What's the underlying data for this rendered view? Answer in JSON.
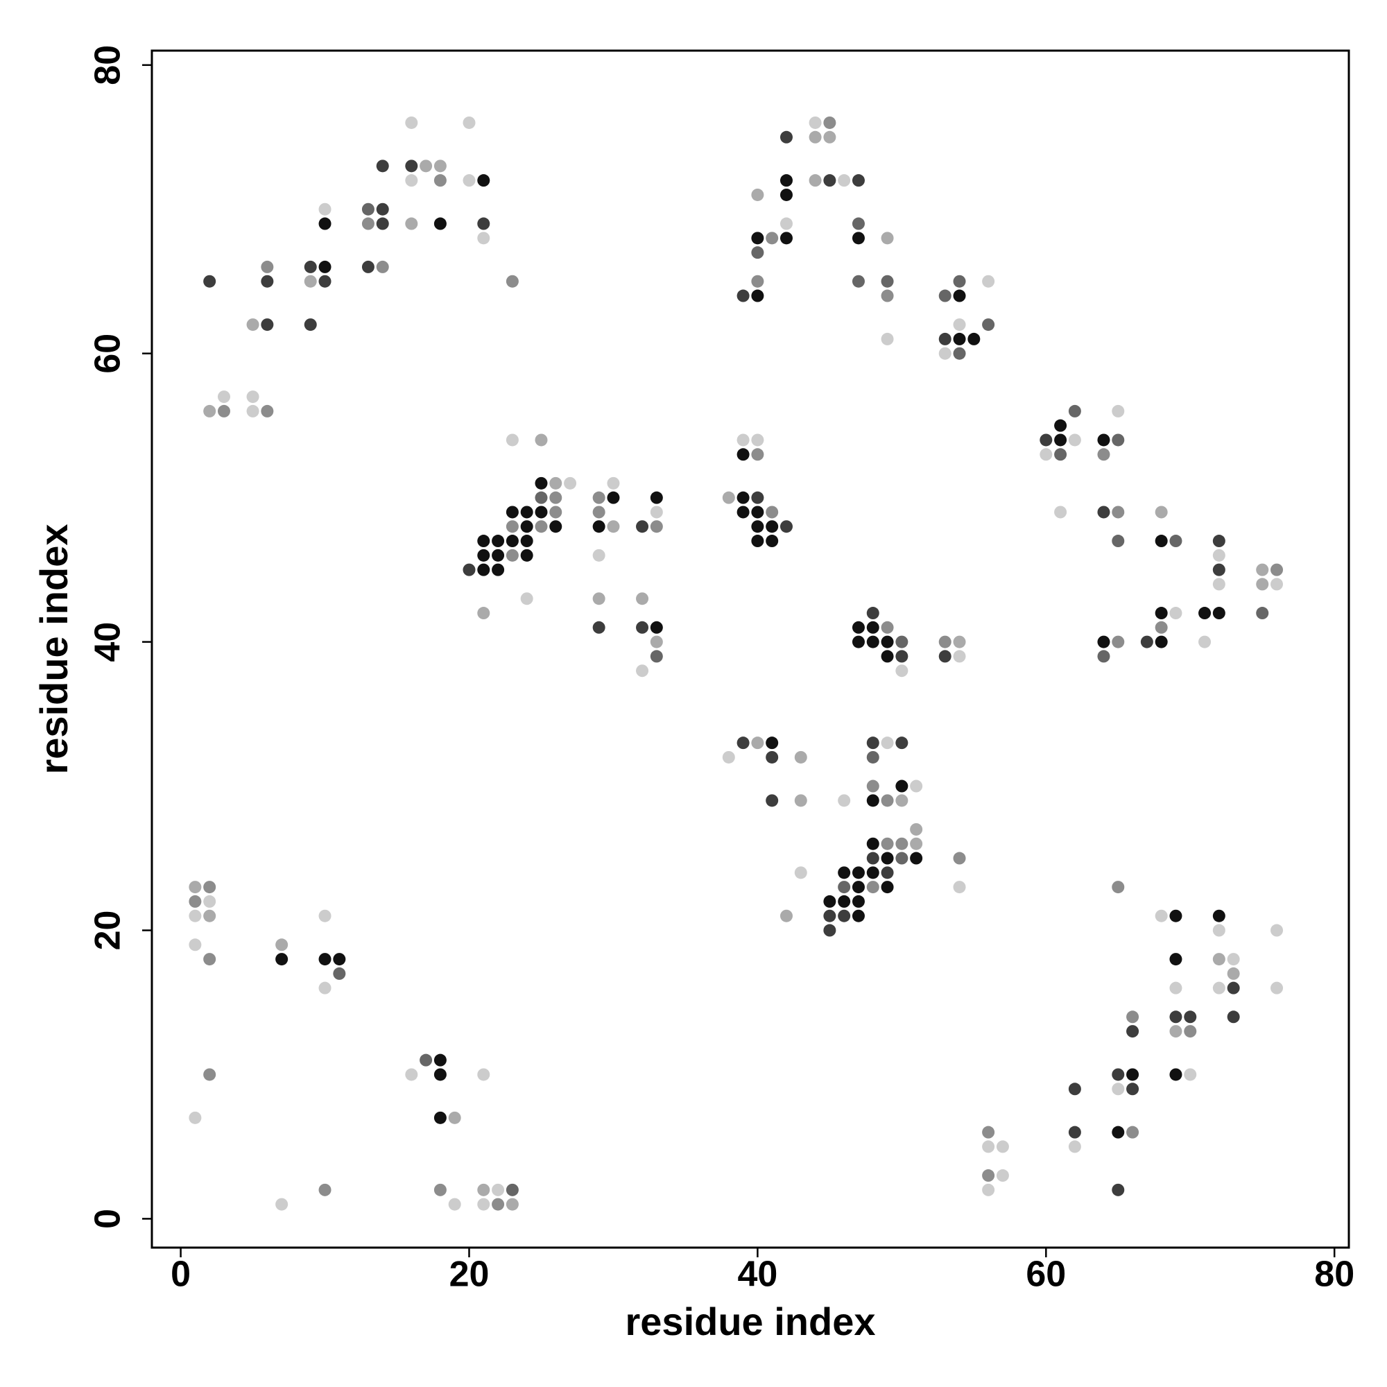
{
  "chart_data": {
    "type": "scatter",
    "xlabel": "residue index",
    "ylabel": "residue index",
    "xlim": [
      -2,
      81
    ],
    "ylim": [
      -2,
      81
    ],
    "xticks": [
      0,
      20,
      40,
      60,
      80
    ],
    "yticks": [
      0,
      20,
      40,
      60,
      80
    ],
    "x": [
      2,
      5,
      6,
      6,
      6,
      9,
      9,
      9,
      10,
      10,
      10,
      10,
      13,
      14,
      13,
      13,
      14,
      14,
      14,
      16,
      16,
      17,
      18,
      18,
      16,
      18,
      16,
      20,
      20,
      21,
      21,
      21,
      23,
      2,
      3,
      3,
      5,
      5,
      6,
      1,
      2,
      1,
      2,
      1,
      2,
      1,
      2,
      7,
      7,
      10,
      10,
      11,
      11,
      10,
      2,
      1,
      7,
      10,
      16,
      17,
      18,
      18,
      18,
      19,
      18,
      19,
      21,
      21,
      22,
      23,
      21,
      22,
      23,
      23,
      25,
      25,
      26,
      27,
      25,
      26,
      24,
      23,
      25,
      26,
      23,
      24,
      25,
      26,
      22,
      21,
      23,
      24,
      21,
      22,
      23,
      24,
      20,
      21,
      22,
      21,
      24,
      29,
      30,
      30,
      29,
      29,
      30,
      29,
      29,
      29,
      32,
      33,
      33,
      33,
      32,
      32,
      33,
      33,
      33,
      32,
      38,
      39,
      40,
      39,
      40,
      41,
      40,
      41,
      42,
      40,
      41,
      39,
      40,
      39,
      40,
      44,
      45,
      44,
      45,
      42,
      44,
      45,
      46,
      47,
      42,
      42,
      40,
      42,
      40,
      41,
      42,
      40,
      47,
      47,
      49,
      39,
      40,
      40,
      47,
      49,
      49,
      49,
      53,
      54,
      54,
      56,
      54,
      56,
      53,
      54,
      55,
      53,
      54,
      48,
      47,
      48,
      49,
      47,
      48,
      49,
      50,
      49,
      50,
      50,
      53,
      54,
      53,
      54,
      38,
      39,
      40,
      41,
      41,
      43,
      41,
      43,
      46,
      48,
      49,
      50,
      48,
      48,
      50,
      51,
      48,
      49,
      50,
      51,
      48,
      49,
      50,
      51,
      48,
      49,
      50,
      51,
      46,
      47,
      48,
      49,
      46,
      47,
      48,
      49,
      45,
      46,
      47,
      45,
      46,
      47,
      45,
      43,
      42,
      54,
      54,
      56,
      56,
      57,
      56,
      57,
      56,
      62,
      61,
      60,
      61,
      62,
      60,
      61,
      61,
      64,
      65,
      64,
      65,
      64,
      65,
      65,
      68,
      68,
      69,
      72,
      72,
      72,
      72,
      75,
      76,
      75,
      76,
      75,
      68,
      69,
      71,
      72,
      71,
      68,
      67,
      68,
      64,
      65,
      64,
      65,
      68,
      69,
      72,
      72,
      76,
      69,
      72,
      73,
      73,
      69,
      72,
      73,
      76,
      66,
      69,
      70,
      73,
      66,
      69,
      70,
      69,
      70,
      65,
      66,
      65,
      66,
      62,
      62,
      62,
      65,
      66,
      65
    ],
    "y": [
      65,
      62,
      62,
      65,
      66,
      62,
      65,
      66,
      66,
      65,
      69,
      70,
      66,
      66,
      69,
      70,
      69,
      70,
      73,
      73,
      72,
      73,
      73,
      72,
      69,
      69,
      76,
      76,
      72,
      72,
      69,
      68,
      65,
      56,
      56,
      57,
      57,
      56,
      56,
      23,
      23,
      22,
      22,
      21,
      21,
      19,
      18,
      19,
      18,
      21,
      18,
      18,
      17,
      16,
      10,
      7,
      1,
      2,
      10,
      11,
      11,
      10,
      7,
      7,
      2,
      1,
      10,
      2,
      2,
      2,
      1,
      1,
      1,
      54,
      54,
      51,
      51,
      51,
      50,
      50,
      49,
      49,
      49,
      49,
      48,
      48,
      48,
      48,
      47,
      47,
      47,
      47,
      46,
      46,
      46,
      46,
      45,
      45,
      45,
      42,
      43,
      50,
      50,
      51,
      49,
      48,
      48,
      46,
      43,
      41,
      48,
      48,
      50,
      49,
      43,
      41,
      41,
      40,
      39,
      38,
      50,
      50,
      50,
      49,
      49,
      49,
      48,
      48,
      48,
      47,
      47,
      54,
      54,
      53,
      53,
      76,
      76,
      75,
      75,
      75,
      72,
      72,
      72,
      72,
      72,
      71,
      71,
      69,
      68,
      68,
      68,
      67,
      69,
      68,
      68,
      64,
      64,
      65,
      65,
      65,
      64,
      61,
      64,
      64,
      65,
      65,
      62,
      62,
      61,
      61,
      61,
      60,
      60,
      42,
      41,
      41,
      41,
      40,
      40,
      40,
      40,
      39,
      39,
      38,
      40,
      40,
      39,
      39,
      32,
      33,
      33,
      33,
      32,
      32,
      29,
      29,
      29,
      33,
      33,
      33,
      32,
      30,
      30,
      30,
      29,
      29,
      29,
      27,
      26,
      26,
      26,
      26,
      25,
      25,
      25,
      25,
      24,
      24,
      24,
      24,
      23,
      23,
      23,
      23,
      22,
      22,
      22,
      21,
      21,
      21,
      20,
      24,
      21,
      25,
      23,
      6,
      5,
      5,
      3,
      3,
      2,
      56,
      55,
      54,
      54,
      54,
      53,
      53,
      49,
      54,
      54,
      53,
      56,
      49,
      49,
      47,
      49,
      47,
      47,
      47,
      46,
      45,
      44,
      45,
      45,
      44,
      44,
      42,
      42,
      42,
      42,
      42,
      40,
      41,
      40,
      40,
      40,
      40,
      39,
      23,
      21,
      21,
      21,
      20,
      20,
      18,
      18,
      18,
      17,
      16,
      16,
      16,
      16,
      14,
      14,
      14,
      14,
      13,
      13,
      13,
      10,
      10,
      10,
      10,
      9,
      9,
      9,
      6,
      5,
      6,
      6,
      2
    ],
    "colors": [
      "#3d3d3d",
      "#aaaaaa",
      "#3d3d3d",
      "#3d3d3d",
      "#8c8c8c",
      "#3d3d3d",
      "#aaaaaa",
      "#3d3d3d",
      "#111111",
      "#3d3d3d",
      "#111111",
      "#cccccc",
      "#3d3d3d",
      "#8c8c8c",
      "#8c8c8c",
      "#666666",
      "#3d3d3d",
      "#3d3d3d",
      "#3d3d3d",
      "#3d3d3d",
      "#cccccc",
      "#aaaaaa",
      "#aaaaaa",
      "#8c8c8c",
      "#aaaaaa",
      "#111111",
      "#cccccc",
      "#cccccc",
      "#cccccc",
      "#111111",
      "#3d3d3d",
      "#cccccc",
      "#8c8c8c",
      "#aaaaaa",
      "#8c8c8c",
      "#cccccc",
      "#cccccc",
      "#cccccc",
      "#8c8c8c",
      "#aaaaaa",
      "#8c8c8c",
      "#8c8c8c",
      "#cccccc",
      "#cccccc",
      "#aaaaaa",
      "#cccccc",
      "#8c8c8c",
      "#aaaaaa",
      "#111111",
      "#cccccc",
      "#111111",
      "#111111",
      "#666666",
      "#cccccc",
      "#8c8c8c",
      "#cccccc",
      "#cccccc",
      "#8c8c8c",
      "#cccccc",
      "#666666",
      "#111111",
      "#111111",
      "#111111",
      "#aaaaaa",
      "#8c8c8c",
      "#cccccc",
      "#cccccc",
      "#aaaaaa",
      "#cccccc",
      "#666666",
      "#cccccc",
      "#8c8c8c",
      "#aaaaaa",
      "#cccccc",
      "#aaaaaa",
      "#111111",
      "#aaaaaa",
      "#cccccc",
      "#666666",
      "#8c8c8c",
      "#111111",
      "#111111",
      "#111111",
      "#8c8c8c",
      "#8c8c8c",
      "#111111",
      "#8c8c8c",
      "#111111",
      "#111111",
      "#111111",
      "#111111",
      "#111111",
      "#111111",
      "#111111",
      "#8c8c8c",
      "#111111",
      "#3d3d3d",
      "#111111",
      "#111111",
      "#aaaaaa",
      "#cccccc",
      "#8c8c8c",
      "#111111",
      "#cccccc",
      "#8c8c8c",
      "#111111",
      "#aaaaaa",
      "#cccccc",
      "#aaaaaa",
      "#3d3d3d",
      "#3d3d3d",
      "#8c8c8c",
      "#111111",
      "#cccccc",
      "#aaaaaa",
      "#3d3d3d",
      "#111111",
      "#aaaaaa",
      "#666666",
      "#cccccc",
      "#aaaaaa",
      "#111111",
      "#3d3d3d",
      "#111111",
      "#111111",
      "#8c8c8c",
      "#111111",
      "#111111",
      "#3d3d3d",
      "#111111",
      "#111111",
      "#cccccc",
      "#cccccc",
      "#111111",
      "#8c8c8c",
      "#cccccc",
      "#8c8c8c",
      "#aaaaaa",
      "#aaaaaa",
      "#3d3d3d",
      "#aaaaaa",
      "#3d3d3d",
      "#cccccc",
      "#3d3d3d",
      "#111111",
      "#111111",
      "#aaaaaa",
      "#cccccc",
      "#111111",
      "#8c8c8c",
      "#111111",
      "#666666",
      "#666666",
      "#111111",
      "#aaaaaa",
      "#3d3d3d",
      "#111111",
      "#8c8c8c",
      "#666666",
      "#666666",
      "#8c8c8c",
      "#cccccc",
      "#666666",
      "#111111",
      "#666666",
      "#cccccc",
      "#cccccc",
      "#666666",
      "#3d3d3d",
      "#111111",
      "#111111",
      "#cccccc",
      "#666666",
      "#3d3d3d",
      "#111111",
      "#111111",
      "#8c8c8c",
      "#111111",
      "#111111",
      "#111111",
      "#666666",
      "#111111",
      "#3d3d3d",
      "#cccccc",
      "#8c8c8c",
      "#aaaaaa",
      "#3d3d3d",
      "#cccccc",
      "#cccccc",
      "#3d3d3d",
      "#aaaaaa",
      "#111111",
      "#3d3d3d",
      "#aaaaaa",
      "#3d3d3d",
      "#aaaaaa",
      "#cccccc",
      "#3d3d3d",
      "#cccccc",
      "#3d3d3d",
      "#666666",
      "#8c8c8c",
      "#111111",
      "#cccccc",
      "#111111",
      "#8c8c8c",
      "#aaaaaa",
      "#aaaaaa",
      "#111111",
      "#8c8c8c",
      "#8c8c8c",
      "#aaaaaa",
      "#3d3d3d",
      "#111111",
      "#666666",
      "#111111",
      "#111111",
      "#111111",
      "#111111",
      "#3d3d3d",
      "#666666",
      "#111111",
      "#8c8c8c",
      "#111111",
      "#111111",
      "#111111",
      "#111111",
      "#3d3d3d",
      "#3d3d3d",
      "#111111",
      "#3d3d3d",
      "#cccccc",
      "#aaaaaa",
      "#8c8c8c",
      "#cccccc",
      "#8c8c8c",
      "#cccccc",
      "#cccccc",
      "#8c8c8c",
      "#cccccc",
      "#cccccc",
      "#666666",
      "#111111",
      "#3d3d3d",
      "#111111",
      "#cccccc",
      "#cccccc",
      "#666666",
      "#cccccc",
      "#111111",
      "#666666",
      "#8c8c8c",
      "#cccccc",
      "#3d3d3d",
      "#8c8c8c",
      "#666666",
      "#aaaaaa",
      "#111111",
      "#666666",
      "#3d3d3d",
      "#cccccc",
      "#3d3d3d",
      "#cccccc",
      "#aaaaaa",
      "#8c8c8c",
      "#aaaaaa",
      "#cccccc",
      "#666666",
      "#111111",
      "#cccccc",
      "#111111",
      "#111111",
      "#cccccc",
      "#8c8c8c",
      "#3d3d3d",
      "#111111",
      "#111111",
      "#8c8c8c",
      "#666666",
      "#8c8c8c",
      "#cccccc",
      "#111111",
      "#111111",
      "#cccccc",
      "#cccccc",
      "#111111",
      "#aaaaaa",
      "#cccccc",
      "#aaaaaa",
      "#cccccc",
      "#cccccc",
      "#3d3d3d",
      "#cccccc",
      "#8c8c8c",
      "#3d3d3d",
      "#3d3d3d",
      "#3d3d3d",
      "#3d3d3d",
      "#aaaaaa",
      "#8c8c8c",
      "#111111",
      "#cccccc",
      "#3d3d3d",
      "#111111",
      "#cccccc",
      "#3d3d3d",
      "#3d3d3d",
      "#3d3d3d",
      "#cccccc",
      "#111111",
      "#8c8c8c",
      "#3d3d3d"
    ]
  }
}
